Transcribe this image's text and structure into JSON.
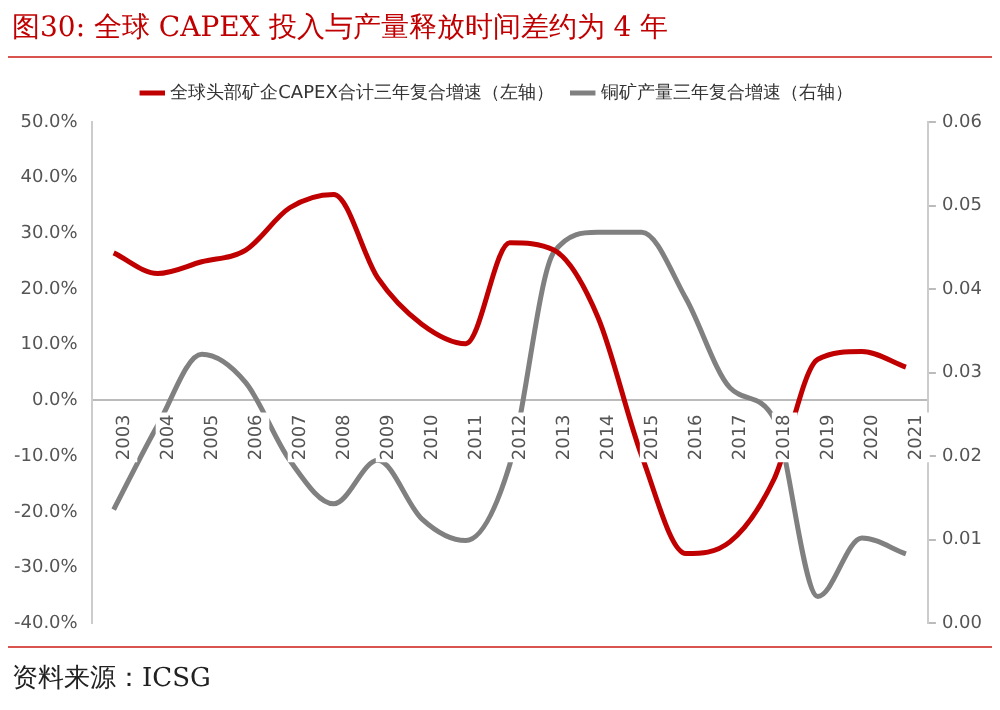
{
  "chart_data": {
    "type": "line",
    "title": "图30:  全球 CAPEX 投入与产量释放时间差约为 4 年",
    "categories": [
      "2003",
      "2004",
      "2005",
      "2006",
      "2007",
      "2008",
      "2009",
      "2010",
      "2011",
      "2012",
      "2013",
      "2014",
      "2015",
      "2016",
      "2017",
      "2018",
      "2019",
      "2020",
      "2021"
    ],
    "series": [
      {
        "name": "全球头部矿企CAPEX合计三年复合增速（左轴）",
        "color": "#c00000",
        "values": [
          26.5,
          22.8,
          24.9,
          27,
          34.6,
          37,
          22,
          13.7,
          10.2,
          28.3,
          27,
          15,
          -10,
          -27.5,
          -25.4,
          -14.2,
          7.4,
          8.8,
          6
        ]
      },
      {
        "name": "铜矿产量三年复合增速（右轴）",
        "color": "#808080",
        "axis": "y2",
        "values": [
          0.0136,
          0.0237,
          0.0322,
          0.0288,
          0.0195,
          0.0143,
          0.0195,
          0.0125,
          0.0099,
          0.019,
          0.0444,
          0.0468,
          0.0468,
          0.0389,
          0.0282,
          0.0245,
          0.0032,
          0.0102,
          0.0083
        ]
      }
    ],
    "ylim": [
      -40,
      50
    ],
    "yticks": [
      {
        "value": -40,
        "label": "-40.0%"
      },
      {
        "value": -30,
        "label": "-30.0%"
      },
      {
        "value": -20,
        "label": "-20.0%"
      },
      {
        "value": -10,
        "label": "-10.0%"
      },
      {
        "value": 0,
        "label": "0.0%"
      },
      {
        "value": 10,
        "label": "10.0%"
      },
      {
        "value": 20,
        "label": "20.0%"
      },
      {
        "value": 30,
        "label": "30.0%"
      },
      {
        "value": 40,
        "label": "40.0%"
      },
      {
        "value": 50,
        "label": "50.0%"
      }
    ],
    "y2lim": [
      0,
      0.06
    ],
    "y2ticks": [
      {
        "value": 0,
        "label": "0.00"
      },
      {
        "value": 0.01,
        "label": "0.01"
      },
      {
        "value": 0.02,
        "label": "0.02"
      },
      {
        "value": 0.03,
        "label": "0.03"
      },
      {
        "value": 0.04,
        "label": "0.04"
      },
      {
        "value": 0.05,
        "label": "0.05"
      },
      {
        "value": 0.06,
        "label": "0.06"
      }
    ],
    "grid": false,
    "legend": "top",
    "annotations": [
      "资料来源：ICSG"
    ]
  }
}
